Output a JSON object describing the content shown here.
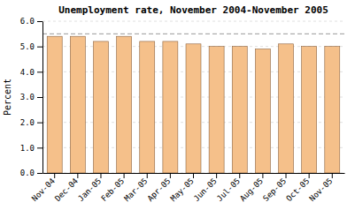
{
  "chart_data": {
    "type": "bar",
    "title": "Unemployment rate, November 2004-November 2005",
    "y_label": "Percent",
    "categories": [
      "Nov-04",
      "Dec-04",
      "Jan-05",
      "Feb-05",
      "Mar-05",
      "Apr-05",
      "May-05",
      "Jun-05",
      "Jul-05",
      "Aug-05",
      "Sep-05",
      "Oct-05",
      "Nov-05"
    ],
    "values": [
      5.4,
      5.4,
      5.2,
      5.4,
      5.2,
      5.2,
      5.1,
      5.0,
      5.0,
      4.9,
      5.1,
      5.0,
      5.0
    ],
    "color": "#F5C08A",
    "ylim": [
      0.0,
      6.0
    ],
    "yticks": [
      {
        "value": 0.0,
        "label": "0.0"
      },
      {
        "value": 1.0,
        "label": "1.0"
      },
      {
        "value": 2.0,
        "label": "2.0"
      },
      {
        "value": 3.0,
        "label": "3.0"
      },
      {
        "value": 4.0,
        "label": "4.0"
      },
      {
        "value": 5.0,
        "label": "5.0"
      },
      {
        "value": 6.0,
        "label": "6.0"
      }
    ],
    "reference_line": 5.5,
    "grid": true
  }
}
